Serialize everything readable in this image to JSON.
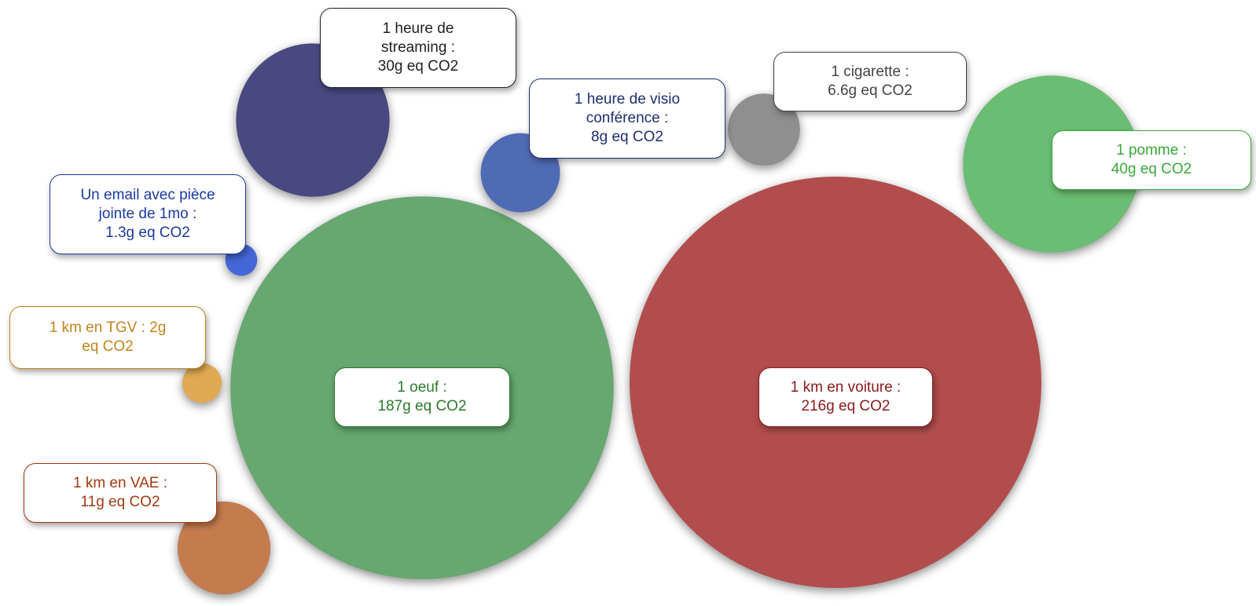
{
  "chart_data": {
    "type": "bubble",
    "unit": "g eq CO2",
    "items": [
      {
        "id": "voiture",
        "name": "1 km en voiture",
        "value": 216,
        "lines": [
          "1 km en voiture :",
          "216g eq CO2"
        ],
        "color": "#b24d4d",
        "text_color": "#8a1a1a"
      },
      {
        "id": "oeuf",
        "name": "1 oeuf",
        "value": 187,
        "lines": [
          "1 oeuf :",
          "187g eq CO2"
        ],
        "color": "#66a870",
        "text_color": "#2a7a2a"
      },
      {
        "id": "pomme",
        "name": "1 pomme",
        "value": 40,
        "lines": [
          "1 pomme :",
          "40g eq CO2"
        ],
        "color": "#6abd72",
        "text_color": "#3aa83a"
      },
      {
        "id": "streaming",
        "name": "1 heure de streaming",
        "value": 30,
        "lines": [
          "1 heure de",
          "streaming :",
          "30g eq CO2"
        ],
        "color": "#4a4880",
        "text_color": "#222222"
      },
      {
        "id": "vae",
        "name": "1 km en VAE",
        "value": 11,
        "lines": [
          "1 km en VAE :",
          "11g eq CO2"
        ],
        "color": "#c47c4f",
        "text_color": "#a03a10"
      },
      {
        "id": "visio",
        "name": "1 heure de visio conférence",
        "value": 8,
        "lines": [
          "1 heure de visio",
          "conférence :",
          "8g eq CO2"
        ],
        "color": "#4f6bb3",
        "text_color": "#1e2f6e"
      },
      {
        "id": "cigarette",
        "name": "1 cigarette",
        "value": 6.6,
        "lines": [
          "1 cigarette :",
          "6.6g eq CO2"
        ],
        "color": "#8f8f8f",
        "text_color": "#444444"
      },
      {
        "id": "tgv",
        "name": "1 km en TGV",
        "value": 2,
        "lines": [
          "1 km en TGV : 2g",
          "eq CO2"
        ],
        "color": "#e0aa55",
        "text_color": "#c0841c"
      },
      {
        "id": "email",
        "name": "Un email avec pièce jointe de 1mo",
        "value": 1.3,
        "lines": [
          "Un email avec pièce",
          "jointe de 1mo :",
          "1.3g eq CO2"
        ],
        "color": "#4466d6",
        "text_color": "#1a3aa0"
      }
    ]
  }
}
